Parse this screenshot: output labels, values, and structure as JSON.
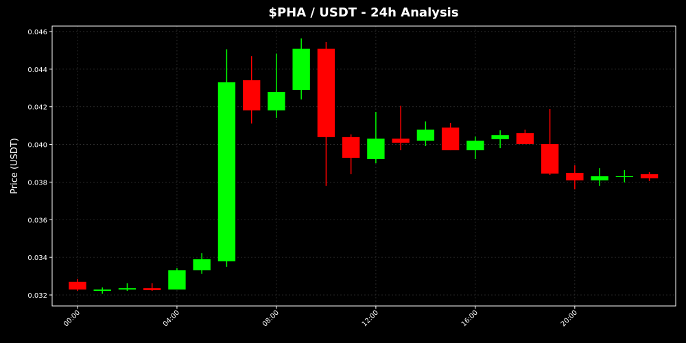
{
  "chart_data": {
    "type": "candlestick",
    "title": "$PHA / USDT - 24h Analysis",
    "y_label": "Price (USDT)",
    "x": [
      0,
      1,
      2,
      3,
      4,
      5,
      6,
      7,
      8,
      9,
      10,
      11,
      12,
      13,
      14,
      15,
      16,
      17,
      18,
      19,
      20,
      21,
      22,
      23
    ],
    "open": [
      0.0327,
      0.03222,
      0.03229,
      0.03236,
      0.03229,
      0.03331,
      0.03379,
      0.04341,
      0.04181,
      0.0429,
      0.04509,
      0.04039,
      0.03922,
      0.04031,
      0.0402,
      0.0409,
      0.03969,
      0.04028,
      0.0406,
      0.04002,
      0.03849,
      0.03809,
      0.03827,
      0.03842
    ],
    "high": [
      0.03285,
      0.0324,
      0.03262,
      0.03262,
      0.03342,
      0.03422,
      0.04505,
      0.04469,
      0.04483,
      0.04563,
      0.04545,
      0.04053,
      0.04173,
      0.04206,
      0.04122,
      0.04115,
      0.04042,
      0.04075,
      0.04079,
      0.04188,
      0.03889,
      0.03874,
      0.03864,
      0.03853
    ],
    "low": [
      0.03222,
      0.03207,
      0.03222,
      0.03222,
      0.03229,
      0.03313,
      0.0335,
      0.04111,
      0.04141,
      0.04239,
      0.0378,
      0.03842,
      0.039,
      0.03969,
      0.03991,
      0.03969,
      0.03922,
      0.0398,
      0.04002,
      0.03838,
      0.03761,
      0.0378,
      0.03798,
      0.03805
    ],
    "close": [
      0.03229,
      0.03229,
      0.03236,
      0.03226,
      0.03331,
      0.0339,
      0.0433,
      0.04181,
      0.04279,
      0.04509,
      0.04039,
      0.03929,
      0.04031,
      0.04009,
      0.04079,
      0.03969,
      0.0402,
      0.04049,
      0.04002,
      0.03845,
      0.03809,
      0.03831,
      0.03831,
      0.0382
    ],
    "up_color": "#00ff00",
    "down_color": "#ff0000",
    "xlim": [
      -1.02,
      24.06
    ],
    "xticks": [
      {
        "value": 0,
        "label": "00:00"
      },
      {
        "value": 4,
        "label": "04:00"
      },
      {
        "value": 8,
        "label": "08:00"
      },
      {
        "value": 12,
        "label": "12:00"
      },
      {
        "value": 16,
        "label": "16:00"
      },
      {
        "value": 20,
        "label": "20:00"
      }
    ],
    "ylim": [
      0.031417,
      0.04629
    ],
    "yticks": [
      0.032,
      0.034,
      0.036,
      0.038,
      {
        "value": 0.04,
        "label": "0.040"
      },
      0.042,
      0.044,
      0.046
    ],
    "grid": true
  }
}
